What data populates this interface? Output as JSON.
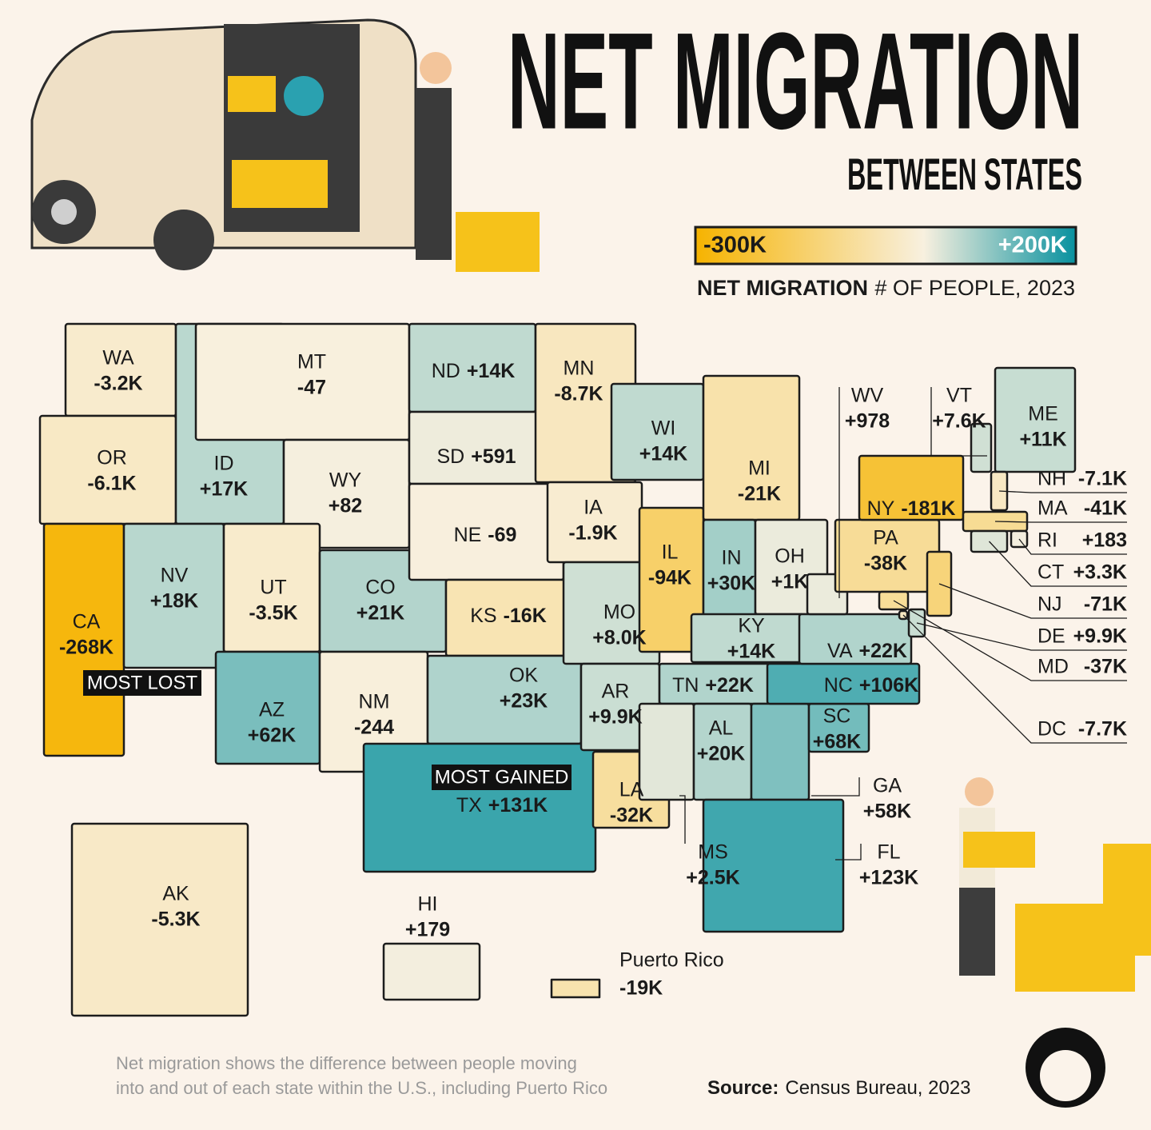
{
  "title": "NET MIGRATION",
  "subtitle": "BETWEEN STATES",
  "legend": {
    "scale": {
      "min": {
        "value": -300000,
        "label": "-300K"
      },
      "max": {
        "value": 200000,
        "label": "+200K"
      }
    },
    "colors": {
      "negative": "#f6b300",
      "neutral": "#f8f0df",
      "positive": "#08919f"
    },
    "title": "NET MIGRATION",
    "subtitle": "# OF PEOPLE, 2023"
  },
  "states": [
    {
      "code": "WA",
      "value": -3200,
      "value_label": "-3.2K"
    },
    {
      "code": "OR",
      "value": -6100,
      "value_label": "-6.1K"
    },
    {
      "code": "CA",
      "value": -268000,
      "value_label": "-268K"
    },
    {
      "code": "ID",
      "value": 17000,
      "value_label": "+17K"
    },
    {
      "code": "NV",
      "value": 18000,
      "value_label": "+18K"
    },
    {
      "code": "MT",
      "value": -47
    },
    {
      "code": "WY",
      "value": 82,
      "value_label": "+82"
    },
    {
      "code": "UT",
      "value": -3500,
      "value_label": "-3.5K"
    },
    {
      "code": "AZ",
      "value": 62000,
      "value_label": "+62K"
    },
    {
      "code": "CO",
      "value": 21000,
      "value_label": "+21K"
    },
    {
      "code": "NM",
      "value": -244
    },
    {
      "code": "ND",
      "value": 14000,
      "value_label": "+14K"
    },
    {
      "code": "SD",
      "value": 591,
      "value_label": "+591"
    },
    {
      "code": "NE",
      "value": -69
    },
    {
      "code": "KS",
      "value": -16000,
      "value_label": "-16K"
    },
    {
      "code": "OK",
      "value": 23000,
      "value_label": "+23K"
    },
    {
      "code": "TX",
      "value": 131000,
      "value_label": "+131K"
    },
    {
      "code": "MN",
      "value": -8700,
      "value_label": "-8.7K"
    },
    {
      "code": "IA",
      "value": -1900,
      "value_label": "-1.9K"
    },
    {
      "code": "MO",
      "value": 8000,
      "value_label": "+8.0K"
    },
    {
      "code": "AR",
      "value": 9900,
      "value_label": "+9.9K"
    },
    {
      "code": "LA",
      "value": -32000,
      "value_label": "-32K"
    },
    {
      "code": "WI",
      "value": 14000,
      "value_label": "+14K"
    },
    {
      "code": "IL",
      "value": -94000,
      "value_label": "-94K"
    },
    {
      "code": "MI",
      "value": -21000,
      "value_label": "-21K"
    },
    {
      "code": "IN",
      "value": 30000,
      "value_label": "+30K"
    },
    {
      "code": "OH",
      "value": 1000,
      "value_label": "+1K"
    },
    {
      "code": "KY",
      "value": 14000,
      "value_label": "+14K"
    },
    {
      "code": "TN",
      "value": 22000,
      "value_label": "+22K"
    },
    {
      "code": "MS",
      "value": 2500,
      "value_label": "+2.5K"
    },
    {
      "code": "AL",
      "value": 20000,
      "value_label": "+20K"
    },
    {
      "code": "GA",
      "value": 58000,
      "value_label": "+58K"
    },
    {
      "code": "FL",
      "value": 123000,
      "value_label": "+123K"
    },
    {
      "code": "SC",
      "value": 68000,
      "value_label": "+68K"
    },
    {
      "code": "NC",
      "value": 106000,
      "value_label": "+106K"
    },
    {
      "code": "VA",
      "value": 22000,
      "value_label": "+22K"
    },
    {
      "code": "WV",
      "value": 978,
      "value_label": "+978"
    },
    {
      "code": "PA",
      "value": -38000,
      "value_label": "-38K"
    },
    {
      "code": "NY",
      "value": -181000,
      "value_label": "-181K"
    },
    {
      "code": "VT",
      "value": 7600,
      "value_label": "+7.6K"
    },
    {
      "code": "ME",
      "value": 11000,
      "value_label": "+11K"
    },
    {
      "code": "NH",
      "value": -7100,
      "value_label": "-7.1K"
    },
    {
      "code": "MA",
      "value": -41000,
      "value_label": "-41K"
    },
    {
      "code": "RI",
      "value": 183,
      "value_label": "+183"
    },
    {
      "code": "CT",
      "value": 3300,
      "value_label": "+3.3K"
    },
    {
      "code": "NJ",
      "value": -71000,
      "value_label": "-71K"
    },
    {
      "code": "DE",
      "value": 9900,
      "value_label": "+9.9K"
    },
    {
      "code": "MD",
      "value": -37000,
      "value_label": "-37K"
    },
    {
      "code": "DC",
      "value": -7700,
      "value_label": "-7.7K"
    },
    {
      "code": "AK",
      "value": -5300,
      "value_label": "-5.3K"
    },
    {
      "code": "HI",
      "value": 179,
      "value_label": "+179"
    }
  ],
  "puerto_rico": {
    "name": "Puerto Rico",
    "value": -19000,
    "value_label": "-19K"
  },
  "annotations": {
    "most_lost": "MOST LOST",
    "most_gained": "MOST GAINED"
  },
  "footnote": [
    "Net migration shows the difference between people moving",
    "into and out of each state within the U.S., including Puerto Rico"
  ],
  "source": {
    "label": "Source:",
    "text": "Census Bureau, 2023"
  }
}
